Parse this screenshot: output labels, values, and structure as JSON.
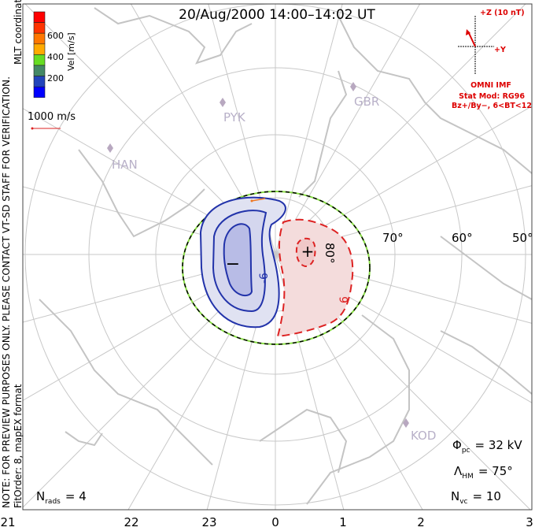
{
  "title": "20/Aug/2000 14:00–14:02 UT",
  "left_notes": {
    "line1": "NOTE: FOR PREVIEW PURPOSES ONLY. PLEASE CONTACT VT-SD STAFF FOR VERIFICATION.",
    "line2": "FitOrder: 8, mapEX format",
    "coords": "MLT coordinates"
  },
  "colorbar": {
    "label": "Vel [m/s]",
    "ticks": [
      "600",
      "400",
      "200"
    ],
    "colors": [
      "#ff0000",
      "#ff3300",
      "#ff7700",
      "#ffaa00",
      "#66dd22",
      "#448866",
      "#2244bb",
      "#0000ff"
    ]
  },
  "scale_vector": {
    "label": "1000 m/s",
    "color": "#dd2222"
  },
  "imf": {
    "z_label": "+Z (10 nT)",
    "y_label": "+Y",
    "source": "OMNI IMF",
    "model": "Stat Mod: RG96",
    "bins": "Bz+/By−, 6<BT<12",
    "color": "#dd0000"
  },
  "stations": [
    "GBR",
    "PYK",
    "HAN",
    "KOD"
  ],
  "latitude_labels": [
    "80°",
    "70°",
    "60°",
    "50°"
  ],
  "mlt_labels": [
    "21",
    "22",
    "23",
    "0",
    "1",
    "2",
    "3"
  ],
  "cells": {
    "negative": "−",
    "positive": "+",
    "contour_neg": "-6",
    "contour_pos": "6"
  },
  "stats": {
    "phi_symbol": "Φ",
    "phi_sub": "pc",
    "phi_value": "= 32 kV",
    "lambda_symbol": "Λ",
    "lambda_sub": "HM",
    "lambda_value": "= 75°",
    "nvc_symbol": "N",
    "nvc_sub": "vc",
    "nvc_value": "= 10",
    "nrads_symbol": "N",
    "nrads_sub": "rads",
    "nrads_value": "= 4"
  }
}
